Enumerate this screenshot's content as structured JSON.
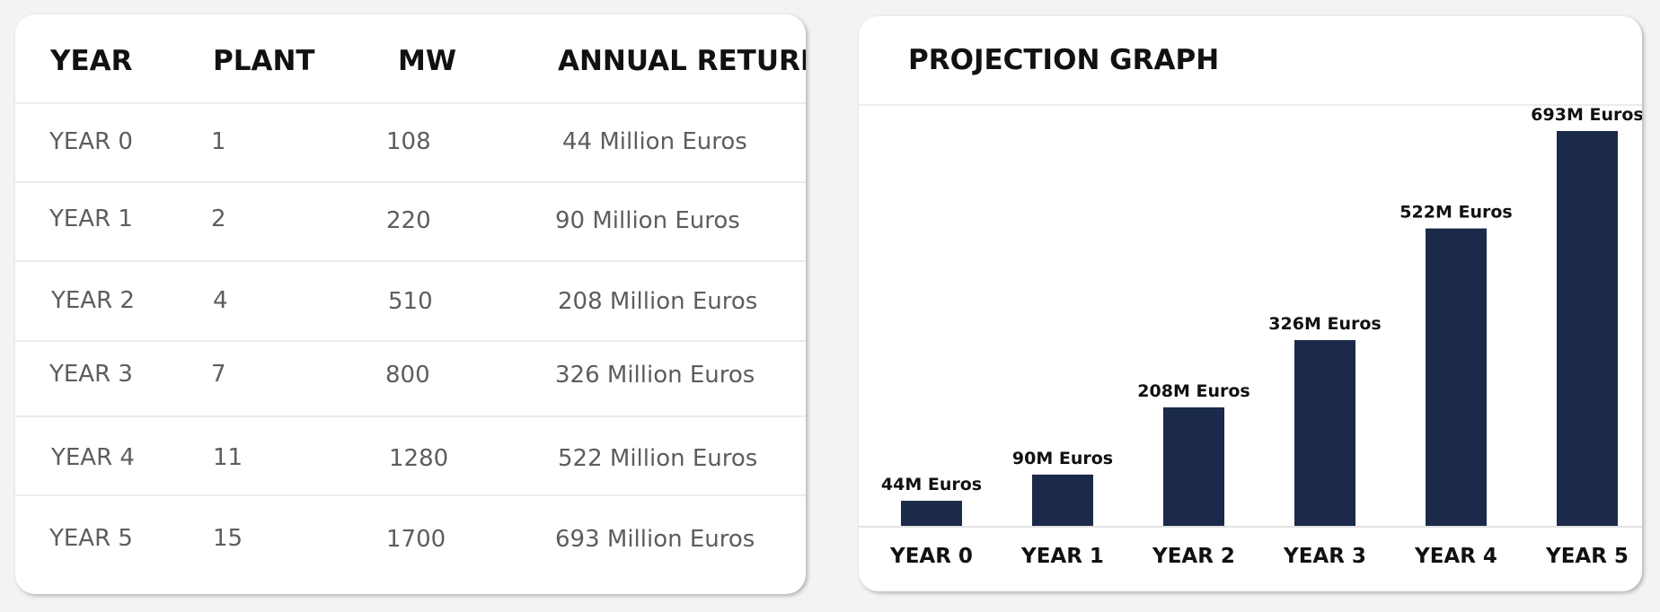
{
  "table": {
    "headers": [
      "YEAR",
      "PLANT",
      "MW",
      "ANNUAL RETURN"
    ],
    "rows": [
      [
        "YEAR 0",
        "1",
        "108",
        "44 Million Euros"
      ],
      [
        "YEAR 1",
        "2",
        "220",
        "90 Million Euros"
      ],
      [
        "YEAR 2",
        "4",
        "510",
        "208 Million Euros"
      ],
      [
        "YEAR 3",
        "7",
        "800",
        "326 Million Euros"
      ],
      [
        "YEAR 4",
        "11",
        "1280",
        "522 Million Euros"
      ],
      [
        "YEAR 5",
        "15",
        "1700",
        "693 Million Euros"
      ]
    ]
  },
  "chart_data": {
    "type": "bar",
    "title": "PROJECTION GRAPH",
    "categories": [
      "YEAR 0",
      "YEAR 1",
      "YEAR 2",
      "YEAR 3",
      "YEAR 4",
      "YEAR 5"
    ],
    "values": [
      44,
      90,
      208,
      326,
      522,
      693
    ],
    "data_labels": [
      "44M Euros",
      "90M Euros",
      "208M Euros",
      "326M Euros",
      "522M Euros",
      "693M Euros"
    ],
    "unit": "Million Euros",
    "xlabel": "",
    "ylabel": "",
    "ylim": [
      0,
      693
    ],
    "grid": false,
    "legend": "none",
    "bar_color": "#1b2a4a"
  }
}
